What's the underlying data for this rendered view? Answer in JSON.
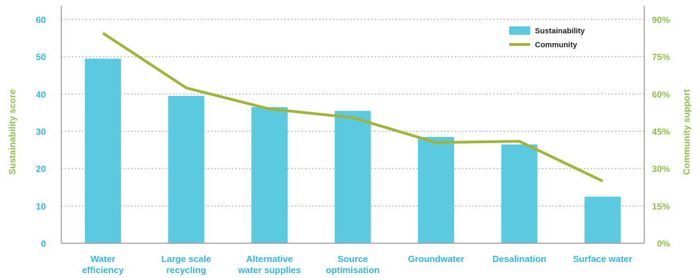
{
  "chart_data": {
    "type": "bar",
    "title": "",
    "categories": [
      [
        "Water",
        "efficiency"
      ],
      [
        "Large scale",
        "recycling"
      ],
      [
        "Alternative",
        "water supplies"
      ],
      [
        "Source",
        "optimisation"
      ],
      [
        "Groundwater"
      ],
      [
        "Desalination"
      ],
      [
        "Surface water"
      ]
    ],
    "series": [
      {
        "name": "Sustainability",
        "type": "bar",
        "axis": "left",
        "values": [
          49.5,
          39.5,
          36.5,
          35.5,
          28.5,
          26.5,
          12.5
        ]
      },
      {
        "name": "Community",
        "type": "line",
        "axis": "right",
        "values": [
          0.845,
          0.625,
          0.54,
          0.505,
          0.405,
          0.41,
          0.25
        ]
      }
    ],
    "ylabel": "Sustainability score",
    "y2label": "Community support",
    "ylim": [
      0,
      60
    ],
    "y_ticks": [
      "0",
      "10",
      "20",
      "30",
      "40",
      "50",
      "60"
    ],
    "y2lim": [
      0,
      0.9
    ],
    "y2_ticks": [
      "0%",
      "15%",
      "30%",
      "45%",
      "60%",
      "75%",
      "90%"
    ],
    "grid": "horizontal dotted",
    "legend_position": "top-right",
    "colors": {
      "bar": "#5bcae0",
      "line": "#9fb53a",
      "tick_left": "#33b5d6",
      "axis_title_left": "#8fbf45",
      "tick_right": "#8fbf45",
      "axis_line": "#9e9e9e",
      "grid": "#b8b8b8"
    }
  }
}
